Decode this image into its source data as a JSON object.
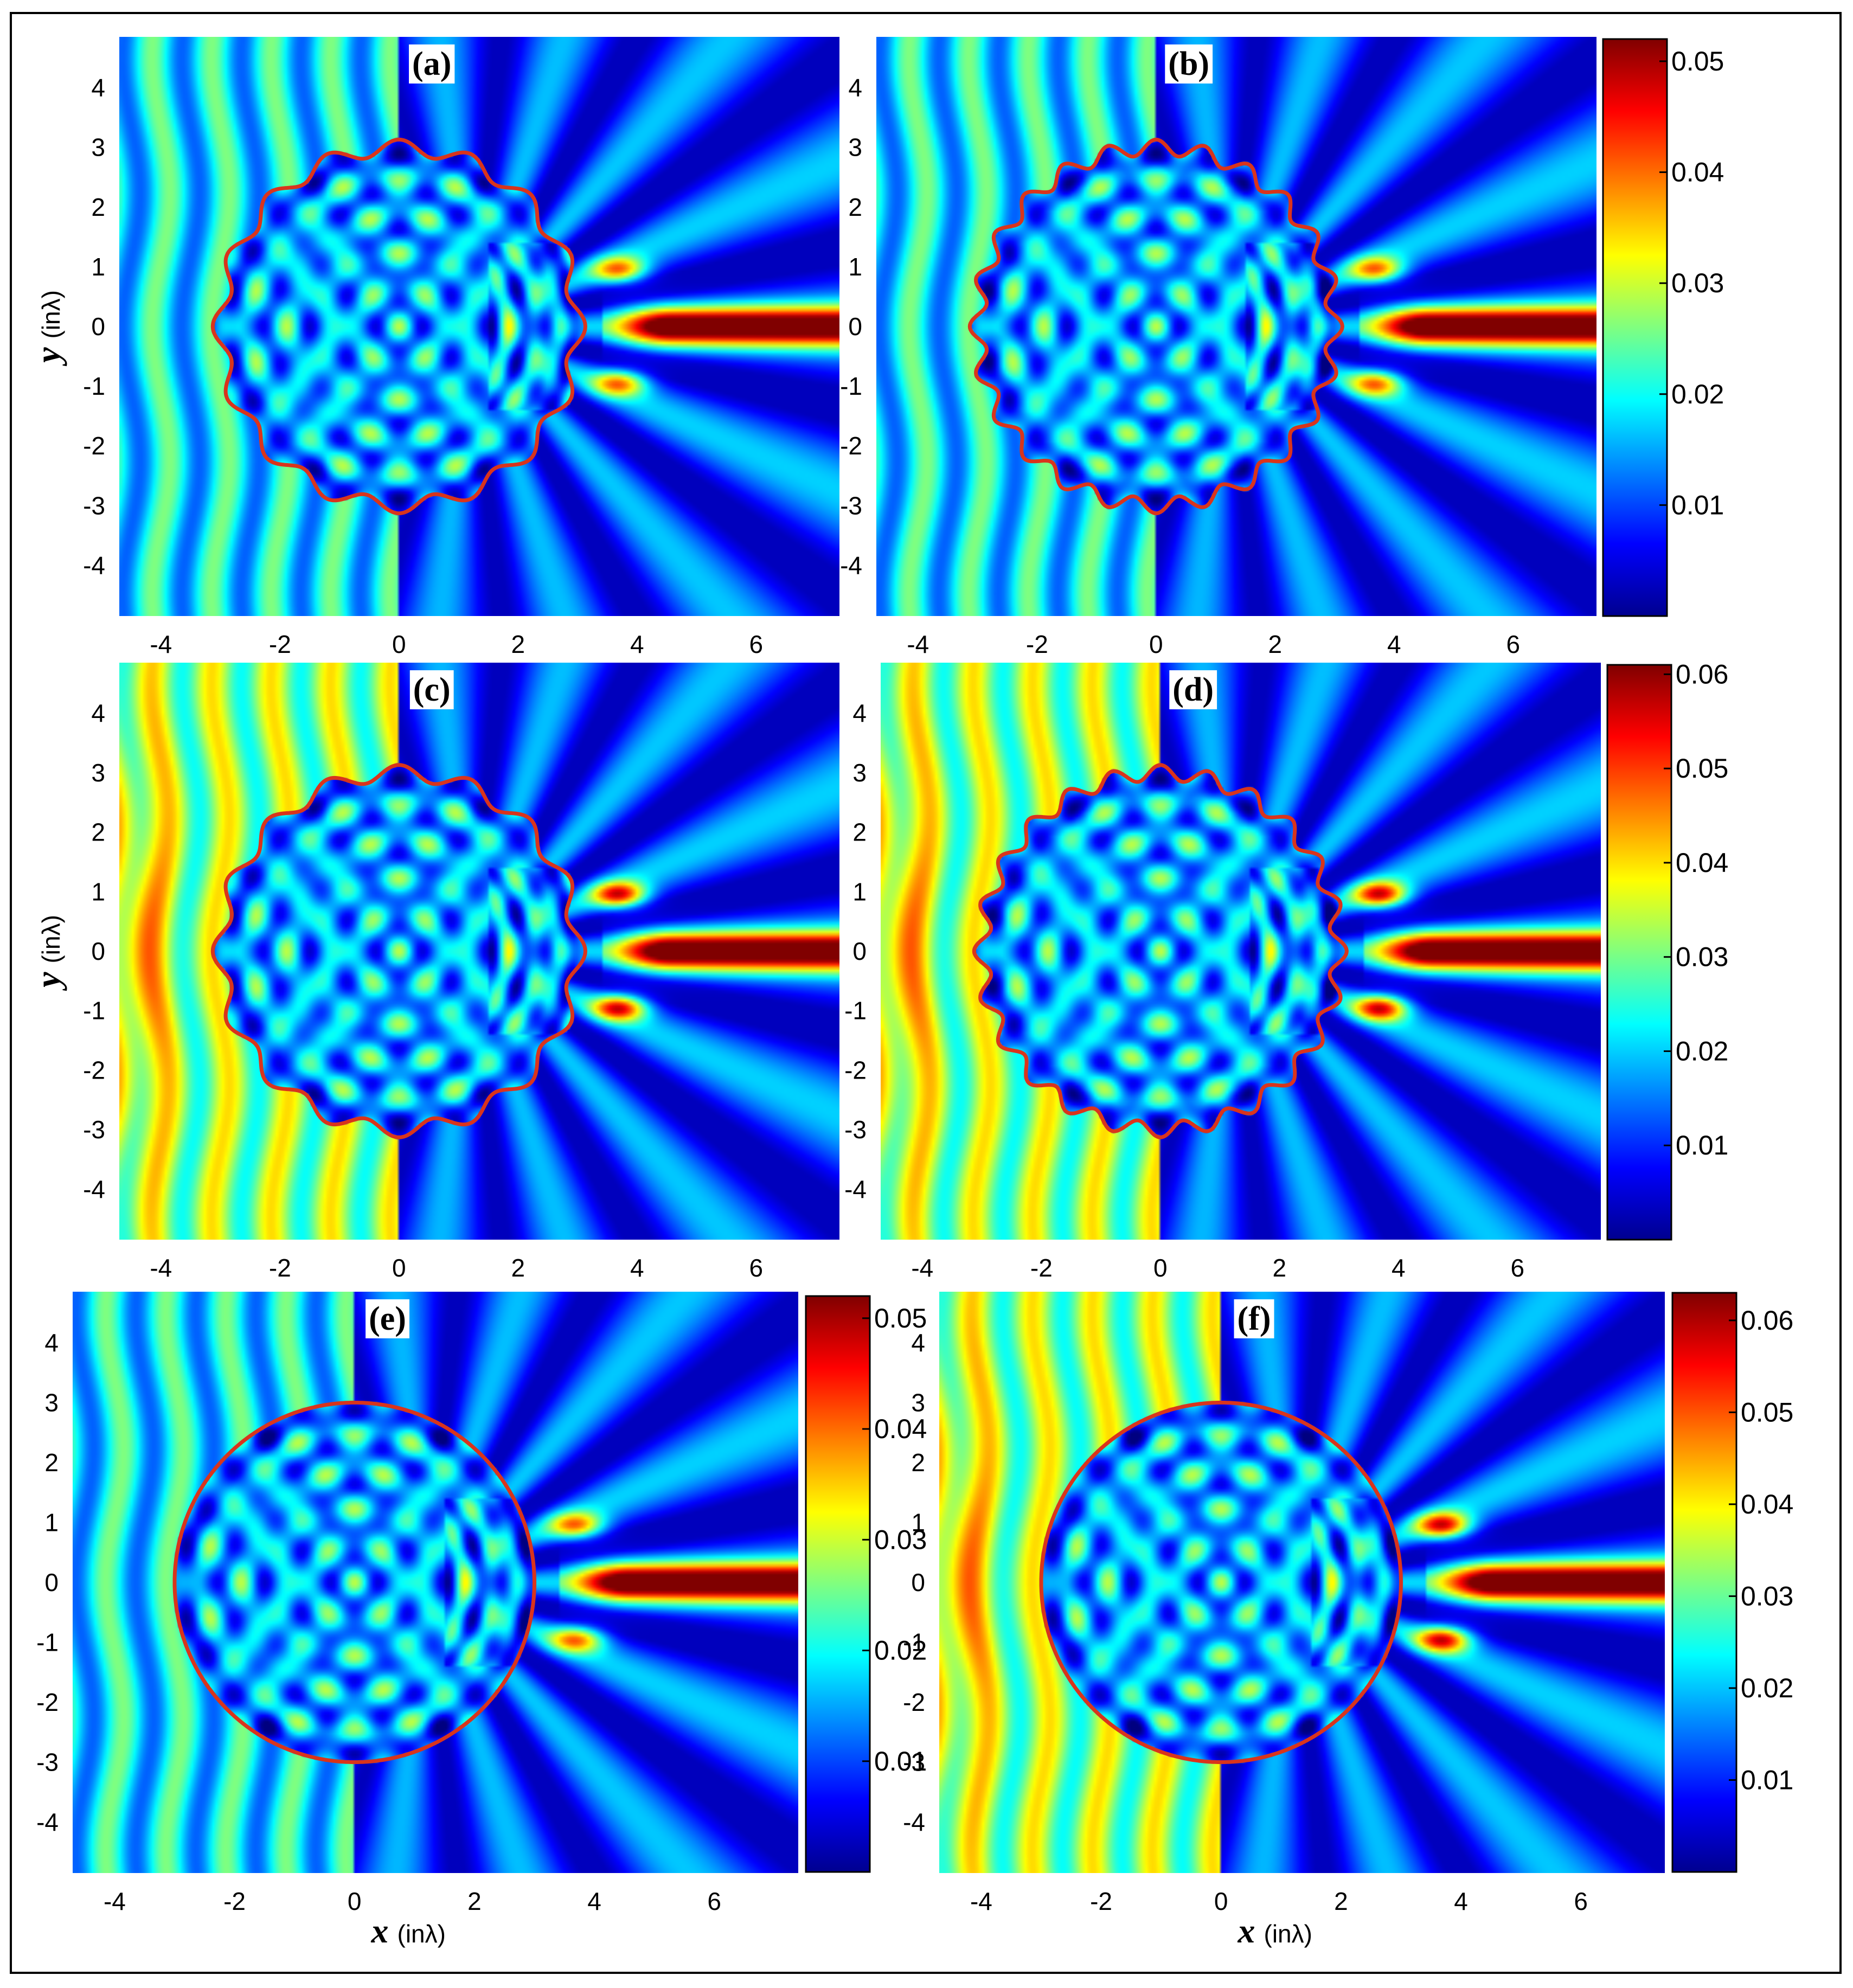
{
  "chart_data": [
    {
      "type": "heatmap",
      "panel_label": "(a)",
      "xlim": [
        -4.7,
        7.4
      ],
      "ylim": [
        -4.85,
        4.85
      ],
      "x_ticks": [
        -4,
        -2,
        0,
        2,
        4,
        6
      ],
      "y_ticks": [
        -4,
        -3,
        -2,
        -1,
        0,
        1,
        2,
        3,
        4
      ],
      "xlabel": "",
      "ylabel": "y (inλ)",
      "color_range": [
        0,
        0.052
      ],
      "boundary": "corrugated",
      "radius": 3,
      "corrugations": 16,
      "amplitude": 0.13,
      "colorbar": "shared-right"
    },
    {
      "type": "heatmap",
      "panel_label": "(b)",
      "xlim": [
        -4.7,
        7.4
      ],
      "ylim": [
        -4.85,
        4.85
      ],
      "x_ticks": [
        -4,
        -2,
        0,
        2,
        4,
        6
      ],
      "y_ticks": [
        -4,
        -3,
        -2,
        -1,
        0,
        1,
        2,
        3,
        4
      ],
      "xlabel": "",
      "ylabel": "",
      "color_range": [
        0,
        0.052
      ],
      "boundary": "corrugated",
      "radius": 3,
      "corrugations": 24,
      "amplitude": 0.13,
      "colorbar": {
        "ticks": [
          0.01,
          0.02,
          0.03,
          0.04,
          0.05
        ],
        "tick_labels": [
          "0.01",
          "0.02",
          "0.03",
          "0.04",
          "0.05"
        ],
        "range": [
          0,
          0.052
        ]
      }
    },
    {
      "type": "heatmap",
      "panel_label": "(c)",
      "xlim": [
        -4.7,
        7.4
      ],
      "ylim": [
        -4.85,
        4.85
      ],
      "x_ticks": [
        -4,
        -2,
        0,
        2,
        4,
        6
      ],
      "y_ticks": [
        -4,
        -3,
        -2,
        -1,
        0,
        1,
        2,
        3,
        4
      ],
      "xlabel": "",
      "ylabel": "y (inλ)",
      "color_range": [
        0,
        0.061
      ],
      "boundary": "corrugated",
      "radius": 3,
      "corrugations": 16,
      "amplitude": 0.13,
      "colorbar": "shared-right"
    },
    {
      "type": "heatmap",
      "panel_label": "(d)",
      "xlim": [
        -4.7,
        7.4
      ],
      "ylim": [
        -4.85,
        4.85
      ],
      "x_ticks": [
        -4,
        -2,
        0,
        2,
        4,
        6
      ],
      "y_ticks": [
        -4,
        -3,
        -2,
        -1,
        0,
        1,
        2,
        3,
        4
      ],
      "xlabel": "",
      "ylabel": "",
      "color_range": [
        0,
        0.061
      ],
      "boundary": "corrugated",
      "radius": 3,
      "corrugations": 24,
      "amplitude": 0.13,
      "colorbar": {
        "ticks": [
          0.01,
          0.02,
          0.03,
          0.04,
          0.05,
          0.06
        ],
        "tick_labels": [
          "0.01",
          "0.02",
          "0.03",
          "0.04",
          "0.05",
          "0.06"
        ],
        "range": [
          0,
          0.061
        ]
      }
    },
    {
      "type": "heatmap",
      "panel_label": "(e)",
      "xlim": [
        -4.7,
        7.4
      ],
      "ylim": [
        -4.85,
        4.85
      ],
      "x_ticks": [
        -4,
        -2,
        0,
        2,
        4,
        6
      ],
      "y_ticks": [
        -4,
        -3,
        -2,
        -1,
        0,
        1,
        2,
        3,
        4
      ],
      "xlabel": "x (inλ)",
      "ylabel": "",
      "color_range": [
        0,
        0.052
      ],
      "boundary": "circle",
      "radius": 3,
      "colorbar": {
        "ticks": [
          0.01,
          0.02,
          0.03,
          0.04,
          0.05
        ],
        "tick_labels": [
          "0.01",
          "0.02",
          "0.03",
          "0.04",
          "0.05"
        ],
        "range": [
          0,
          0.052
        ]
      }
    },
    {
      "type": "heatmap",
      "panel_label": "(f)",
      "xlim": [
        -4.7,
        7.4
      ],
      "ylim": [
        -4.85,
        4.85
      ],
      "x_ticks": [
        -4,
        -2,
        0,
        2,
        4,
        6
      ],
      "y_ticks": [
        -4,
        -3,
        -2,
        -1,
        0,
        1,
        2,
        3,
        4
      ],
      "xlabel": "x (inλ)",
      "ylabel": "",
      "color_range": [
        0,
        0.063
      ],
      "boundary": "circle",
      "radius": 3,
      "colorbar": {
        "ticks": [
          0.01,
          0.02,
          0.03,
          0.04,
          0.05,
          0.06
        ],
        "tick_labels": [
          "0.01",
          "0.02",
          "0.03",
          "0.04",
          "0.05",
          "0.06"
        ],
        "range": [
          0,
          0.063
        ]
      }
    }
  ],
  "axis_text": {
    "x_main": "x",
    "y_main": "y",
    "unit": "(inλ)"
  },
  "colors": {
    "boundary": "#d9341c",
    "colormap": "jet"
  }
}
